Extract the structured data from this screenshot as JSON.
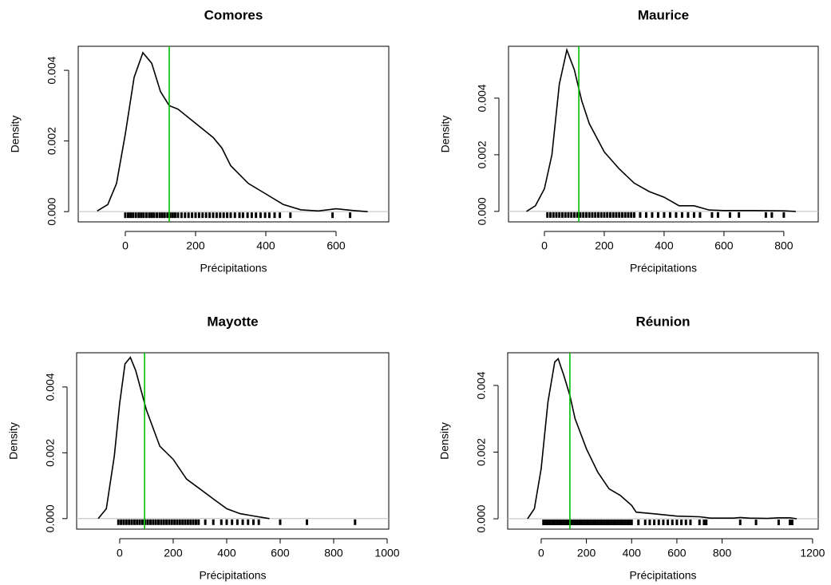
{
  "chart_data": [
    {
      "type": "line",
      "title": "Comores",
      "xlabel": "Précipitations",
      "ylabel": "Density",
      "color": "#000000",
      "vline_color": "#00c000",
      "x": [
        -80,
        -50,
        -25,
        0,
        25,
        50,
        75,
        100,
        125,
        150,
        200,
        250,
        275,
        300,
        350,
        400,
        450,
        500,
        550,
        600,
        650,
        690
      ],
      "values": [
        2e-05,
        0.0002,
        0.0008,
        0.0022,
        0.0038,
        0.0045,
        0.0042,
        0.0034,
        0.003,
        0.0029,
        0.0025,
        0.0021,
        0.0018,
        0.0013,
        0.0008,
        0.0005,
        0.0002,
        5e-05,
        2e-05,
        8e-05,
        3e-05,
        0
      ],
      "vline": 125,
      "rug": [
        0,
        8,
        15,
        22,
        30,
        38,
        45,
        52,
        60,
        68,
        75,
        82,
        90,
        98,
        105,
        112,
        120,
        128,
        135,
        142,
        150,
        160,
        170,
        180,
        190,
        200,
        210,
        220,
        230,
        240,
        250,
        260,
        270,
        280,
        290,
        300,
        312,
        325,
        335,
        348,
        360,
        372,
        385,
        398,
        410,
        425,
        440,
        470,
        590,
        640
      ],
      "xlim": [
        -134,
        750
      ],
      "ylim": [
        -0.00029,
        0.00468
      ],
      "xticks": [
        0,
        200,
        400,
        600
      ],
      "yticks": [
        {
          "value": 0,
          "label": "0.000"
        },
        0.002,
        0.004
      ]
    },
    {
      "type": "line",
      "title": "Maurice",
      "xlabel": "Précipitations",
      "ylabel": "Density",
      "color": "#000000",
      "vline_color": "#00c000",
      "x": [
        -60,
        -30,
        0,
        25,
        50,
        75,
        100,
        125,
        150,
        200,
        250,
        300,
        350,
        400,
        450,
        500,
        550,
        600,
        700,
        800,
        840
      ],
      "values": [
        0,
        0.0002,
        0.0008,
        0.002,
        0.0045,
        0.0057,
        0.005,
        0.0039,
        0.0031,
        0.0021,
        0.0015,
        0.001,
        0.0007,
        0.0005,
        0.0002,
        0.0002,
        5e-05,
        3e-05,
        3e-05,
        2e-05,
        0
      ],
      "vline": 115,
      "rug": [
        10,
        20,
        30,
        40,
        50,
        60,
        70,
        80,
        90,
        100,
        110,
        120,
        130,
        140,
        150,
        160,
        170,
        180,
        190,
        200,
        210,
        220,
        230,
        240,
        250,
        260,
        270,
        280,
        290,
        300,
        320,
        340,
        360,
        380,
        400,
        420,
        440,
        460,
        480,
        500,
        520,
        560,
        580,
        620,
        650,
        740,
        760,
        800
      ],
      "xlim": [
        -120,
        915
      ],
      "ylim": [
        -0.00037,
        0.00583
      ],
      "xticks": [
        0,
        200,
        400,
        600,
        800
      ],
      "yticks": [
        {
          "value": 0,
          "label": "0.000"
        },
        0.002,
        0.004
      ]
    },
    {
      "type": "line",
      "title": "Mayotte",
      "xlabel": "Précipitations",
      "ylabel": "Density",
      "color": "#000000",
      "vline_color": "#00c000",
      "x": [
        -80,
        -50,
        -20,
        0,
        20,
        40,
        60,
        80,
        100,
        150,
        200,
        250,
        300,
        350,
        400,
        450,
        500,
        560
      ],
      "values": [
        0,
        0.0003,
        0.0019,
        0.0035,
        0.0047,
        0.0049,
        0.0045,
        0.0039,
        0.0033,
        0.0022,
        0.0018,
        0.0012,
        0.0009,
        0.0006,
        0.0003,
        0.00015,
        8e-05,
        0
      ],
      "vline": 93,
      "rug": [
        -5,
        5,
        15,
        25,
        35,
        45,
        55,
        65,
        75,
        85,
        95,
        105,
        115,
        125,
        135,
        145,
        155,
        165,
        175,
        185,
        195,
        205,
        215,
        225,
        235,
        245,
        255,
        265,
        275,
        285,
        295,
        320,
        350,
        380,
        400,
        420,
        440,
        460,
        480,
        500,
        520,
        600,
        700,
        880
      ],
      "xlim": [
        -161,
        1006
      ],
      "ylim": [
        -0.00032,
        0.00504
      ],
      "xticks": [
        0,
        200,
        400,
        600,
        800,
        1000
      ],
      "yticks": [
        {
          "value": 0,
          "label": "0.000"
        },
        0.002,
        0.004
      ]
    },
    {
      "type": "line",
      "title": "Réunion",
      "xlabel": "Précipitations",
      "ylabel": "Density",
      "color": "#000000",
      "vline_color": "#00c000",
      "x": [
        -60,
        -30,
        0,
        30,
        60,
        75,
        100,
        127,
        150,
        200,
        250,
        300,
        350,
        400,
        420,
        500,
        600,
        700,
        750,
        850,
        880,
        920,
        1000,
        1050,
        1100,
        1130
      ],
      "values": [
        0,
        0.0003,
        0.0015,
        0.0035,
        0.0047,
        0.0048,
        0.0043,
        0.0037,
        0.003,
        0.0021,
        0.0014,
        0.0009,
        0.0007,
        0.0004,
        0.0002,
        0.00015,
        8e-05,
        6e-05,
        2e-05,
        2e-05,
        4e-05,
        2e-05,
        1e-05,
        3e-05,
        3e-05,
        0
      ],
      "vline": 127,
      "rug": [
        10,
        20,
        30,
        40,
        50,
        60,
        70,
        80,
        90,
        100,
        110,
        120,
        130,
        140,
        150,
        160,
        170,
        180,
        190,
        200,
        210,
        220,
        230,
        240,
        250,
        260,
        270,
        280,
        290,
        300,
        310,
        320,
        330,
        340,
        350,
        360,
        370,
        380,
        390,
        400,
        430,
        460,
        480,
        500,
        520,
        540,
        560,
        580,
        600,
        620,
        640,
        660,
        700,
        720,
        730,
        880,
        950,
        1050,
        1100,
        1110
      ],
      "xlim": [
        -148,
        1225
      ],
      "ylim": [
        -0.00031,
        0.00498
      ],
      "xticks": [
        0,
        200,
        400,
        600,
        800,
        {
          "value": 1200,
          "label": "1200"
        }
      ],
      "yticks": [
        {
          "value": 0,
          "label": "0.000"
        },
        0.002,
        0.004
      ]
    }
  ]
}
